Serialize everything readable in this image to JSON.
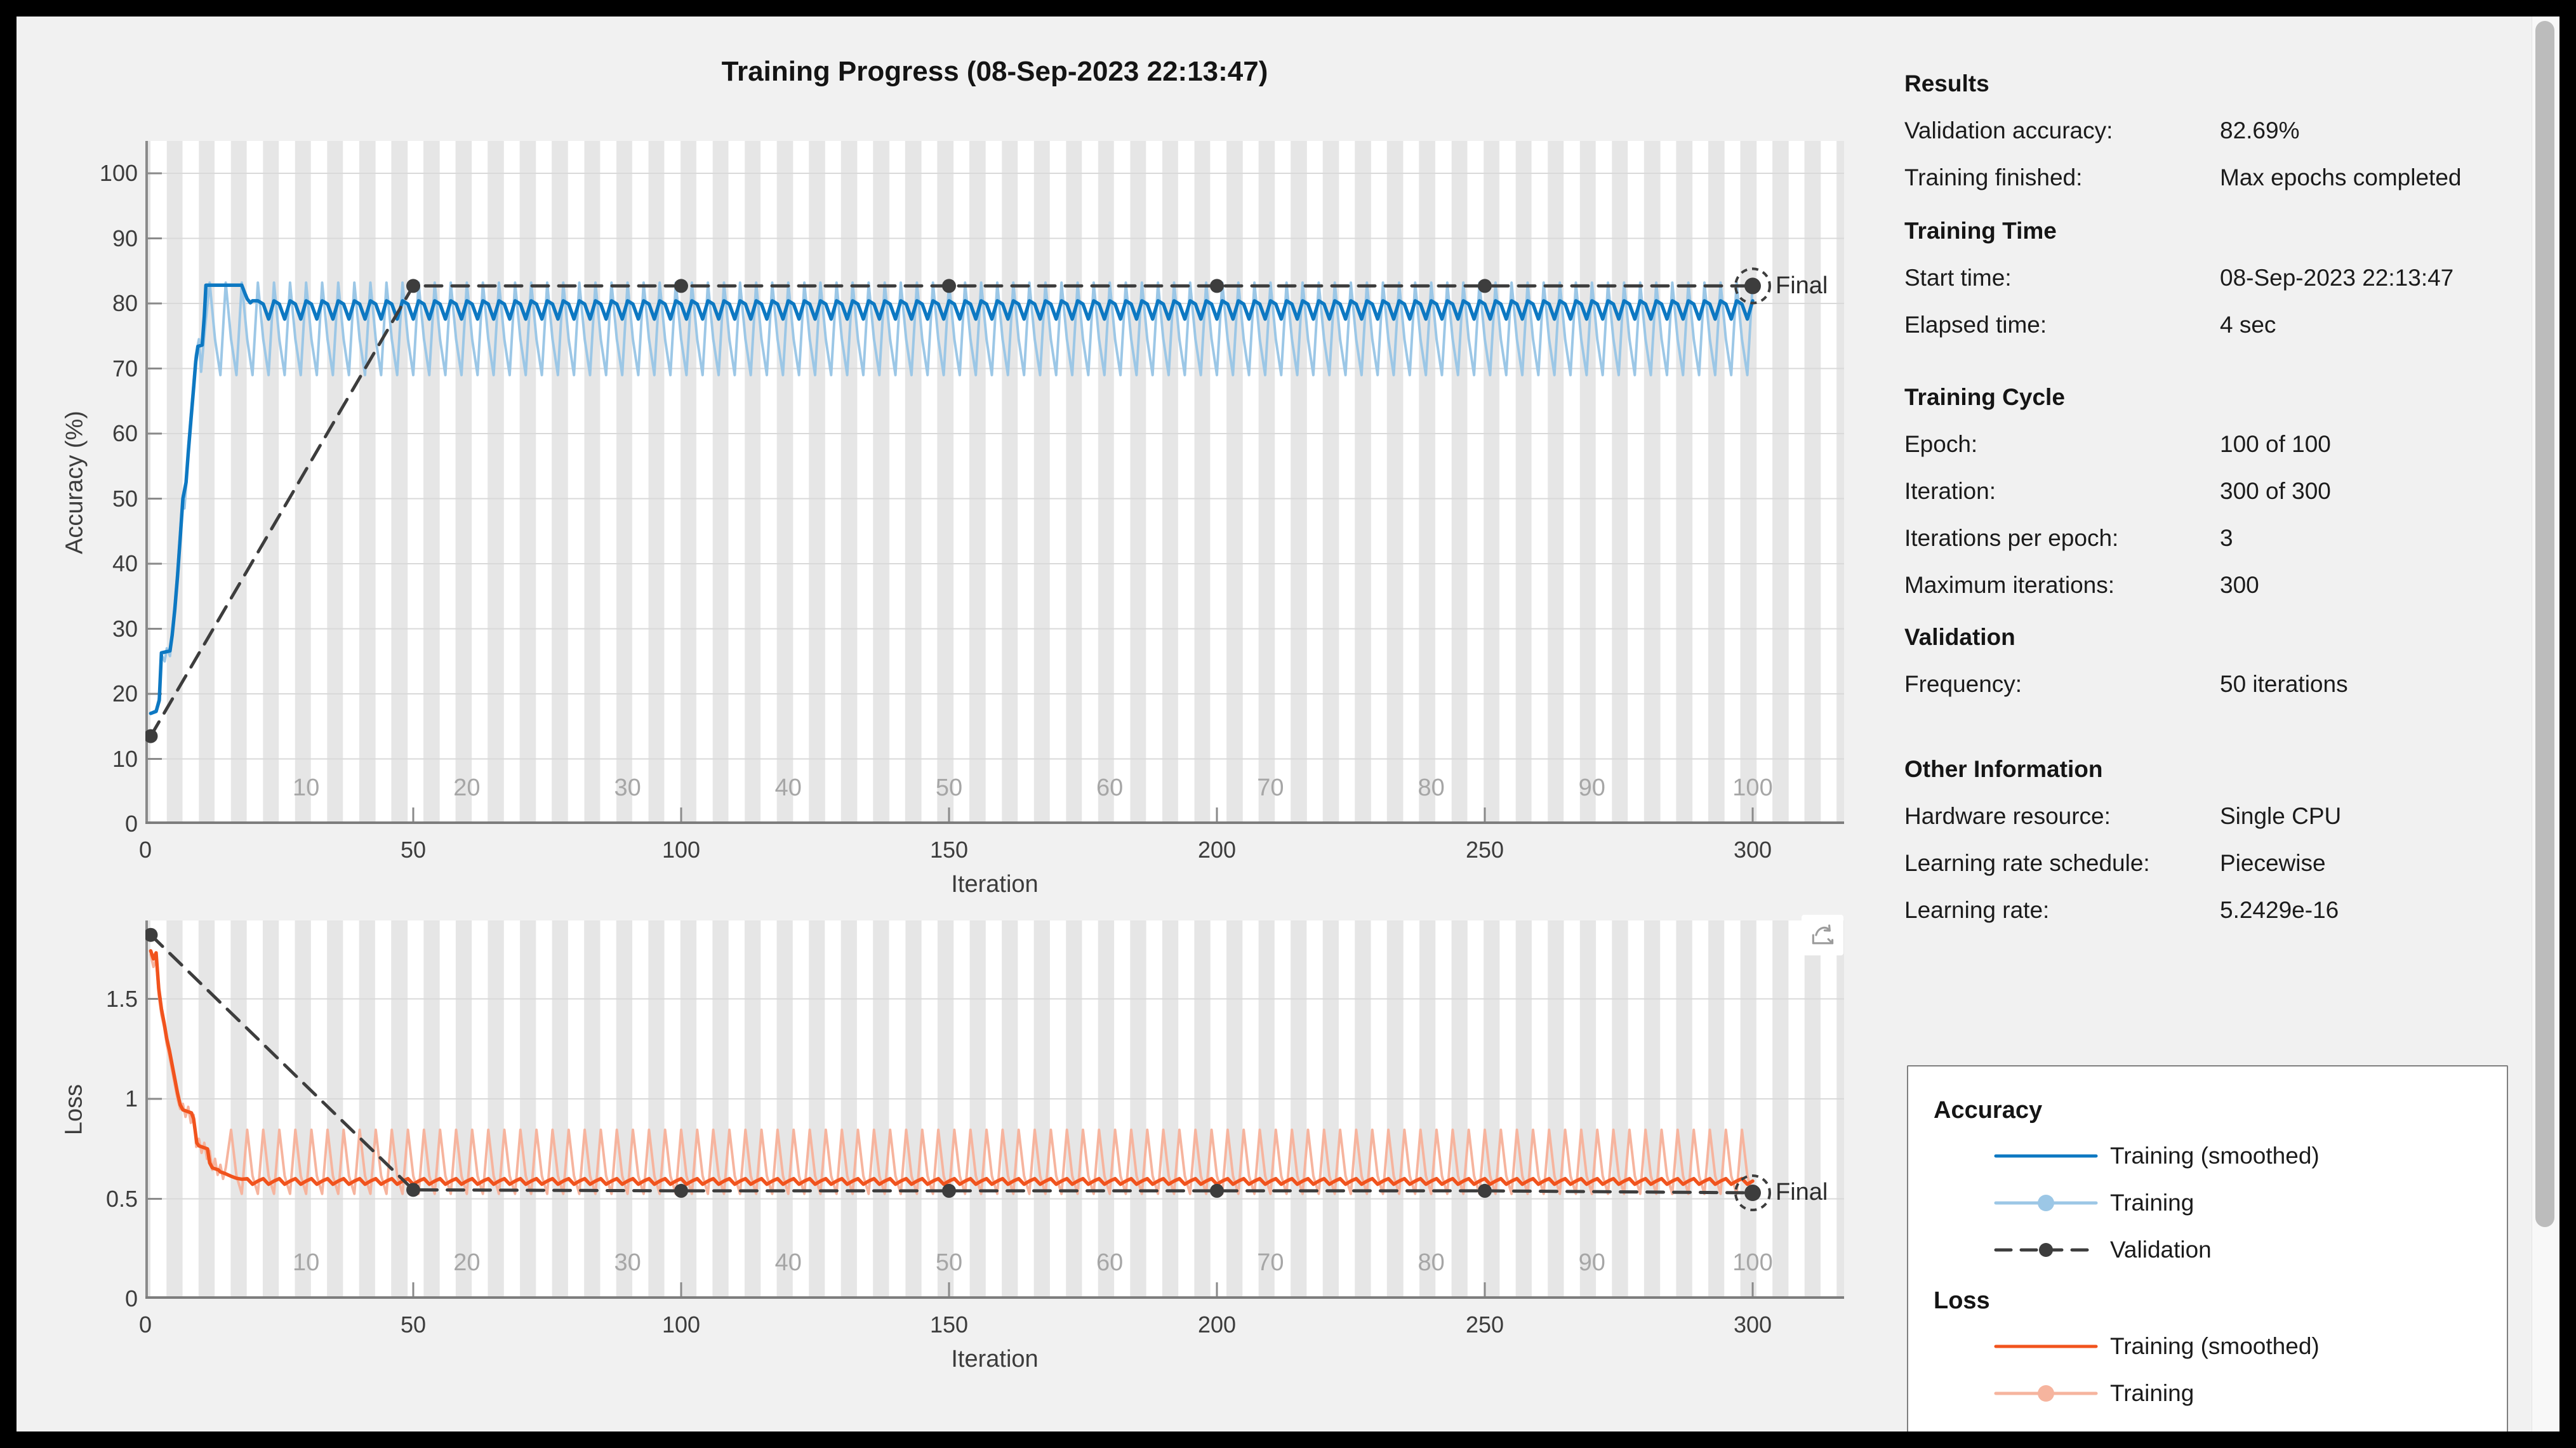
{
  "title": "Training Progress (08-Sep-2023 22:13:47)",
  "colors": {
    "training_smoothed_accuracy": "#0d78c2",
    "training_raw_accuracy": "#9cc7e6",
    "training_smoothed_loss": "#f1531d",
    "training_raw_loss": "#f6b49e",
    "validation": "#3d3d3d",
    "epoch_band": "#e6e6e6",
    "grid_line": "#d9d9d9",
    "axis_line": "#8a8a8a",
    "background": "#f1f1f1",
    "scrollbar_thumb": "#bcbcbc"
  },
  "icons": {
    "loss_axes_toolbar": "export-figure-arrow-icon"
  },
  "chart_data": [
    {
      "id": "accuracy",
      "type": "line",
      "xlabel": "Iteration",
      "ylabel": "Accuracy (%)",
      "xlim": [
        0,
        317
      ],
      "ylim": [
        0,
        105
      ],
      "x_ticks": [
        0,
        50,
        100,
        150,
        200,
        250,
        300
      ],
      "y_ticks": [
        0,
        10,
        20,
        30,
        40,
        50,
        60,
        70,
        80,
        90,
        100
      ],
      "epoch_labels": [
        10,
        20,
        30,
        40,
        50,
        60,
        70,
        80,
        90,
        100
      ],
      "iterations_per_epoch": 3,
      "grid": "horizontal",
      "legend_position": "external-box",
      "series": [
        {
          "name": "Training (smoothed)",
          "role": "acc_smoothed",
          "line": "solid",
          "points": [
            [
              1,
              17
            ],
            [
              2,
              17.3
            ],
            [
              2.6,
              19
            ],
            [
              3,
              26.3
            ],
            [
              4.6,
              26.6
            ],
            [
              5,
              29
            ],
            [
              5.5,
              33
            ],
            [
              6,
              38
            ],
            [
              6.5,
              44
            ],
            [
              7,
              50
            ],
            [
              7.6,
              52.5
            ],
            [
              8,
              57
            ],
            [
              8.5,
              62
            ],
            [
              9,
              67
            ],
            [
              9.4,
              71
            ],
            [
              9.8,
              73.4
            ],
            [
              10.6,
              73.6
            ],
            [
              11,
              78
            ],
            [
              11.3,
              82.8
            ],
            [
              18,
              82.8
            ],
            [
              18.6,
              81.5
            ],
            [
              19,
              80.7
            ],
            [
              19.6,
              80.1
            ],
            [
              20,
              80.4
            ]
          ],
          "cycle": {
            "from": 21,
            "to": 300,
            "period": 3,
            "values": [
              80.4,
              79.9,
              77.6
            ]
          }
        },
        {
          "name": "Training",
          "role": "acc_raw",
          "line": "solid",
          "points": [
            [
              1,
              17
            ],
            [
              2,
              17.5
            ],
            [
              2.6,
              19.5
            ],
            [
              3,
              26
            ],
            [
              3.6,
              25
            ],
            [
              4,
              27
            ],
            [
              4.6,
              25.8
            ],
            [
              5,
              29.5
            ],
            [
              5.5,
              34
            ],
            [
              6,
              39
            ],
            [
              6.5,
              45
            ],
            [
              7,
              50.5
            ],
            [
              7.3,
              48.5
            ],
            [
              7.7,
              53
            ],
            [
              8,
              58
            ],
            [
              8.5,
              63
            ],
            [
              9,
              68
            ],
            [
              9.4,
              72
            ],
            [
              10,
              74.5
            ],
            [
              10.4,
              69.5
            ],
            [
              11,
              75
            ]
          ],
          "cycle": {
            "from": 12,
            "to": 300,
            "period": 3,
            "values": [
              83.2,
              74.5,
              69
            ]
          }
        },
        {
          "name": "Validation",
          "role": "validation",
          "line": "dashed",
          "markers": true,
          "points": [
            [
              1,
              13.5
            ],
            [
              50,
              82.69
            ],
            [
              100,
              82.69
            ],
            [
              150,
              82.69
            ],
            [
              200,
              82.69
            ],
            [
              250,
              82.69
            ],
            [
              300,
              82.69
            ]
          ]
        }
      ],
      "final_marker": {
        "x": 300,
        "y": 82.69,
        "label": "Final"
      }
    },
    {
      "id": "loss",
      "type": "line",
      "xlabel": "Iteration",
      "ylabel": "Loss",
      "xlim": [
        0,
        317
      ],
      "ylim": [
        0,
        1.89
      ],
      "x_ticks": [
        0,
        50,
        100,
        150,
        200,
        250,
        300
      ],
      "y_ticks": [
        0,
        0.5,
        1,
        1.5
      ],
      "epoch_labels": [
        10,
        20,
        30,
        40,
        50,
        60,
        70,
        80,
        90,
        100
      ],
      "iterations_per_epoch": 3,
      "grid": "horizontal",
      "series": [
        {
          "name": "Training (smoothed)",
          "role": "loss_smoothed",
          "line": "solid",
          "points": [
            [
              1,
              1.74
            ],
            [
              1.5,
              1.7
            ],
            [
              2,
              1.73
            ],
            [
              2.5,
              1.55
            ],
            [
              3,
              1.45
            ],
            [
              3.5,
              1.38
            ],
            [
              4,
              1.3
            ],
            [
              4.5,
              1.24
            ],
            [
              5,
              1.17
            ],
            [
              5.5,
              1.1
            ],
            [
              6,
              1.03
            ],
            [
              6.5,
              0.97
            ],
            [
              7,
              0.945
            ],
            [
              8.6,
              0.93
            ],
            [
              9,
              0.9
            ],
            [
              9.6,
              0.78
            ],
            [
              10,
              0.765
            ],
            [
              11.6,
              0.75
            ],
            [
              12,
              0.68
            ],
            [
              12.5,
              0.655
            ],
            [
              13.6,
              0.645
            ],
            [
              14,
              0.635
            ],
            [
              15,
              0.625
            ],
            [
              16,
              0.613
            ],
            [
              17,
              0.603
            ],
            [
              18,
              0.598
            ]
          ],
          "cycle": {
            "from": 19,
            "to": 300,
            "period": 3,
            "values": [
              0.601,
              0.573,
              0.589
            ]
          }
        },
        {
          "name": "Training",
          "role": "loss_raw",
          "line": "solid",
          "points": [
            [
              1,
              1.72
            ],
            [
              1.5,
              1.66
            ],
            [
              2,
              1.7
            ],
            [
              2.5,
              1.52
            ],
            [
              3,
              1.42
            ],
            [
              3.5,
              1.36
            ],
            [
              4,
              1.27
            ],
            [
              4.5,
              1.21
            ],
            [
              5,
              1.14
            ],
            [
              5.5,
              1.07
            ],
            [
              6,
              1.0
            ],
            [
              6.5,
              0.95
            ],
            [
              7,
              0.975
            ],
            [
              7.5,
              0.91
            ],
            [
              8,
              0.96
            ],
            [
              8.5,
              0.88
            ],
            [
              9,
              0.92
            ],
            [
              9.5,
              0.76
            ],
            [
              10,
              0.8
            ],
            [
              10.5,
              0.73
            ],
            [
              11,
              0.78
            ],
            [
              11.5,
              0.7
            ],
            [
              12,
              0.74
            ],
            [
              12.5,
              0.645
            ],
            [
              13,
              0.7
            ],
            [
              13.5,
              0.62
            ],
            [
              14,
              0.67
            ],
            [
              14.5,
              0.6
            ],
            [
              15,
              0.655
            ]
          ],
          "cycle": {
            "from": 16,
            "to": 300,
            "period": 3,
            "values": [
              0.845,
              0.615,
              0.525
            ]
          }
        },
        {
          "name": "Validation",
          "role": "validation",
          "line": "dashed",
          "markers": true,
          "points": [
            [
              1,
              1.82
            ],
            [
              50,
              0.545
            ],
            [
              100,
              0.54
            ],
            [
              150,
              0.54
            ],
            [
              200,
              0.54
            ],
            [
              250,
              0.54
            ],
            [
              300,
              0.53
            ]
          ]
        }
      ],
      "final_marker": {
        "x": 300,
        "y": 0.53,
        "label": "Final"
      }
    }
  ],
  "info_panel": {
    "sections": [
      {
        "header": "Results",
        "rows": [
          {
            "label": "Validation accuracy:",
            "value": "82.69%"
          },
          {
            "label": "Training finished:",
            "value": "Max epochs completed"
          }
        ]
      },
      {
        "header": "Training Time",
        "rows": [
          {
            "label": "Start time:",
            "value": "08-Sep-2023 22:13:47"
          },
          {
            "label": "Elapsed time:",
            "value": "4 sec"
          }
        ]
      },
      {
        "header": "Training Cycle",
        "rows": [
          {
            "label": "Epoch:",
            "value": "100 of 100"
          },
          {
            "label": "Iteration:",
            "value": "300 of 300"
          },
          {
            "label": "Iterations per epoch:",
            "value": "3"
          },
          {
            "label": "Maximum iterations:",
            "value": "300"
          }
        ]
      },
      {
        "header": "Validation",
        "rows": [
          {
            "label": "Frequency:",
            "value": "50 iterations"
          }
        ]
      },
      {
        "header": "Other Information",
        "rows": [
          {
            "label": "Hardware resource:",
            "value": "Single CPU"
          },
          {
            "label": "Learning rate schedule:",
            "value": "Piecewise"
          },
          {
            "label": "Learning rate:",
            "value": "5.2429e-16"
          }
        ]
      }
    ]
  },
  "legend": {
    "sections": [
      {
        "title": "Accuracy",
        "items": [
          {
            "label": "Training (smoothed)",
            "role": "acc_smoothed",
            "line": "solid",
            "marker": false
          },
          {
            "label": "Training",
            "role": "acc_raw",
            "line": "solid",
            "marker": true
          },
          {
            "label": "Validation",
            "role": "validation",
            "line": "dashed",
            "marker": true
          }
        ]
      },
      {
        "title": "Loss",
        "items": [
          {
            "label": "Training (smoothed)",
            "role": "loss_smoothed",
            "line": "solid",
            "marker": false
          },
          {
            "label": "Training",
            "role": "loss_raw",
            "line": "solid",
            "marker": true
          }
        ]
      }
    ]
  }
}
